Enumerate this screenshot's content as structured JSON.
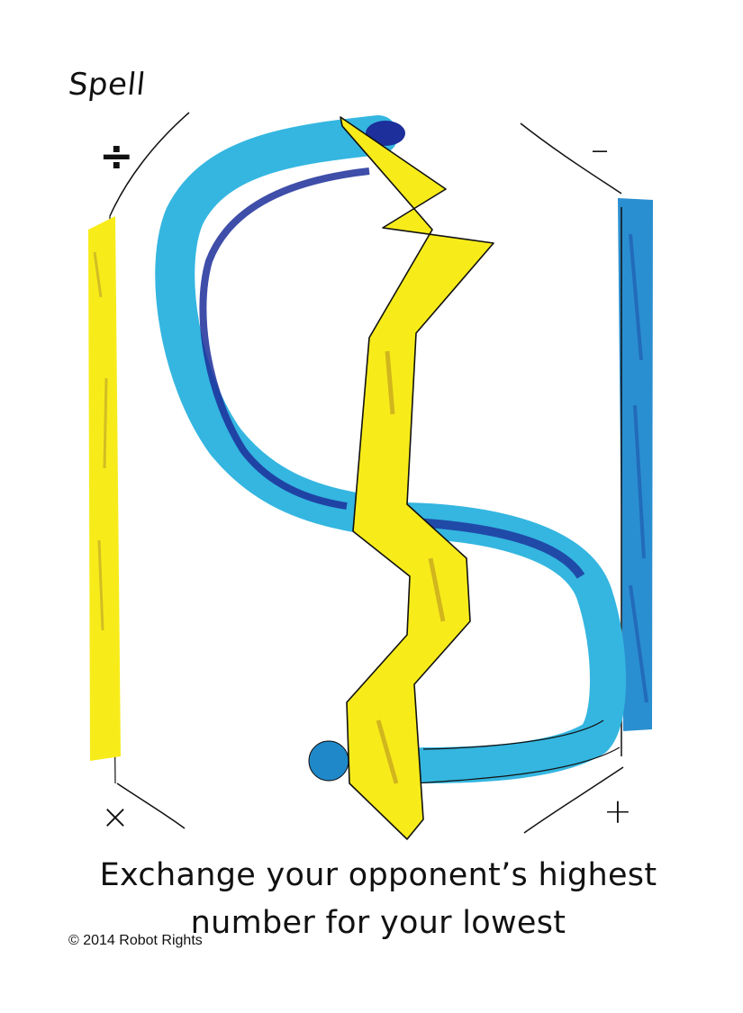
{
  "card": {
    "type_label": "Spell",
    "effect_text": "Exchange your opponent’s highest number for your lowest",
    "copyright": "© 2014 Robot Rights"
  },
  "corners": {
    "top_left": "÷",
    "top_right": "–",
    "bottom_left": "×",
    "bottom_right": "+"
  },
  "artwork": {
    "description_icon": "crayon-card-art",
    "colors": {
      "yellow": "#f7ec1a",
      "light_blue": "#2fb4e0",
      "dark_blue": "#1c2f9a",
      "mid_blue": "#1f88c9",
      "outline": "#111111"
    }
  }
}
